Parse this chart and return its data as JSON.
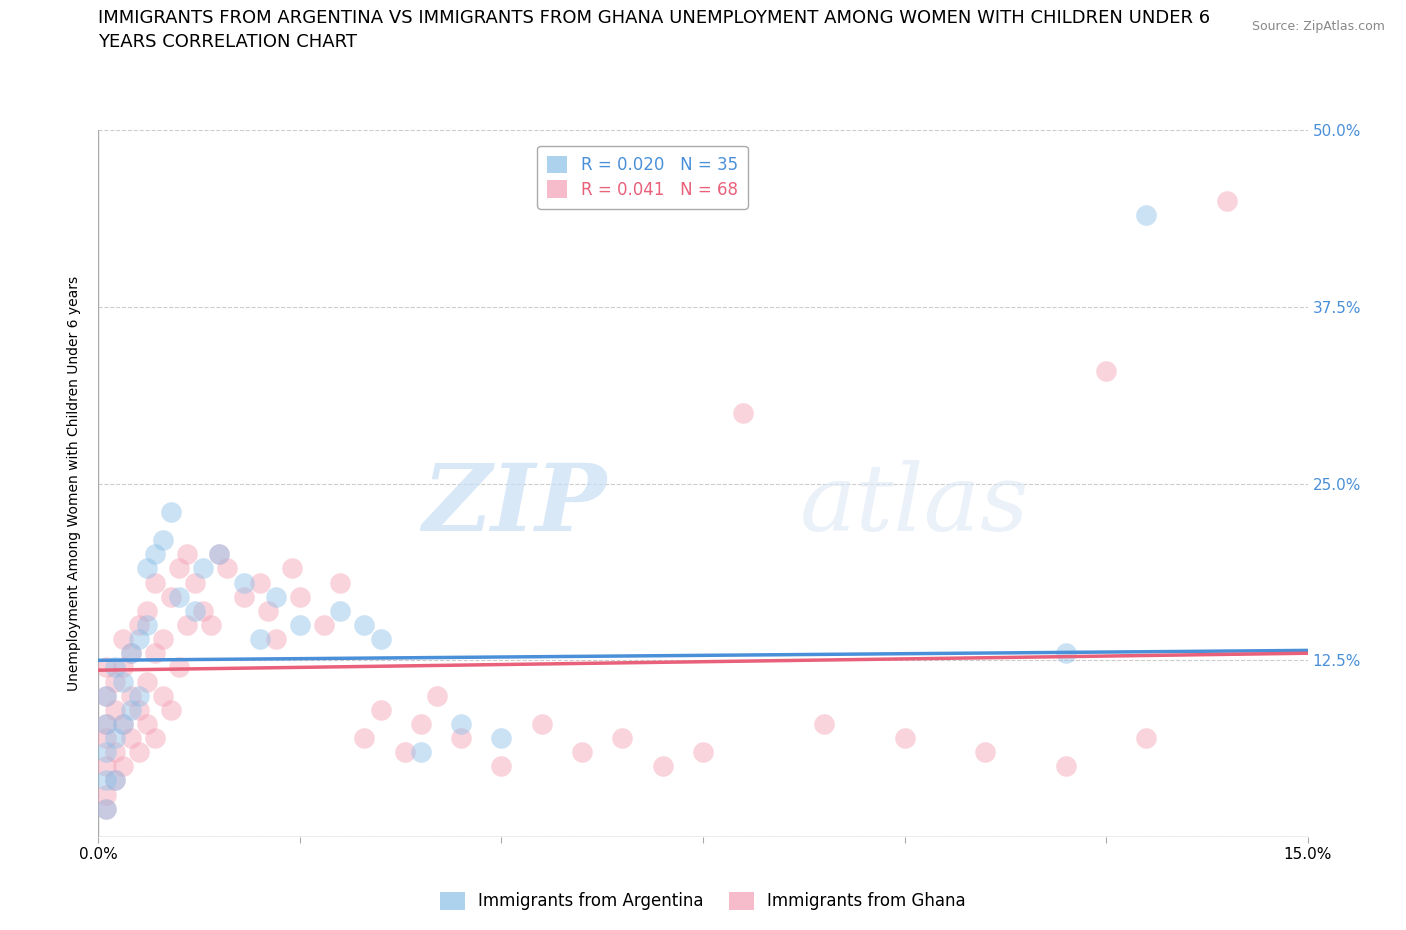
{
  "title_line1": "IMMIGRANTS FROM ARGENTINA VS IMMIGRANTS FROM GHANA UNEMPLOYMENT AMONG WOMEN WITH CHILDREN UNDER 6",
  "title_line2": "YEARS CORRELATION CHART",
  "source": "Source: ZipAtlas.com",
  "ylabel": "Unemployment Among Women with Children Under 6 years",
  "xlim": [
    0,
    0.15
  ],
  "ylim": [
    0,
    0.5
  ],
  "xticks": [
    0.0,
    0.025,
    0.05,
    0.075,
    0.1,
    0.125,
    0.15
  ],
  "xtick_labels": [
    "0.0%",
    "",
    "",
    "",
    "",
    "",
    "15.0%"
  ],
  "ytick_labels_right": [
    "50.0%",
    "37.5%",
    "25.0%",
    "12.5%",
    ""
  ],
  "yticks_right": [
    0.5,
    0.375,
    0.25,
    0.125,
    0.0
  ],
  "color_argentina": "#8bbfe8",
  "color_ghana": "#f4a0b5",
  "trendline_argentina_color": "#4a90d9",
  "trendline_ghana_color": "#e8607a",
  "R_argentina": 0.02,
  "N_argentina": 35,
  "R_ghana": 0.041,
  "N_ghana": 68,
  "argentina_x": [
    0.001,
    0.001,
    0.001,
    0.001,
    0.001,
    0.002,
    0.002,
    0.002,
    0.003,
    0.003,
    0.004,
    0.004,
    0.005,
    0.005,
    0.006,
    0.006,
    0.007,
    0.008,
    0.009,
    0.01,
    0.012,
    0.013,
    0.015,
    0.018,
    0.02,
    0.022,
    0.025,
    0.03,
    0.033,
    0.035,
    0.04,
    0.045,
    0.05,
    0.12,
    0.13
  ],
  "argentina_y": [
    0.02,
    0.04,
    0.06,
    0.08,
    0.1,
    0.04,
    0.07,
    0.12,
    0.08,
    0.11,
    0.09,
    0.13,
    0.14,
    0.1,
    0.15,
    0.19,
    0.2,
    0.21,
    0.23,
    0.17,
    0.16,
    0.19,
    0.2,
    0.18,
    0.14,
    0.17,
    0.15,
    0.16,
    0.15,
    0.14,
    0.06,
    0.08,
    0.07,
    0.13,
    0.44
  ],
  "ghana_x": [
    0.001,
    0.001,
    0.001,
    0.001,
    0.001,
    0.001,
    0.001,
    0.002,
    0.002,
    0.002,
    0.002,
    0.003,
    0.003,
    0.003,
    0.003,
    0.004,
    0.004,
    0.004,
    0.005,
    0.005,
    0.005,
    0.006,
    0.006,
    0.006,
    0.007,
    0.007,
    0.007,
    0.008,
    0.008,
    0.009,
    0.009,
    0.01,
    0.01,
    0.011,
    0.011,
    0.012,
    0.013,
    0.014,
    0.015,
    0.016,
    0.018,
    0.02,
    0.021,
    0.022,
    0.024,
    0.025,
    0.028,
    0.03,
    0.033,
    0.035,
    0.038,
    0.04,
    0.042,
    0.045,
    0.05,
    0.055,
    0.06,
    0.065,
    0.07,
    0.075,
    0.08,
    0.09,
    0.1,
    0.11,
    0.12,
    0.125,
    0.13,
    0.14
  ],
  "ghana_y": [
    0.02,
    0.03,
    0.05,
    0.07,
    0.08,
    0.1,
    0.12,
    0.04,
    0.06,
    0.09,
    0.11,
    0.05,
    0.08,
    0.12,
    0.14,
    0.07,
    0.1,
    0.13,
    0.06,
    0.09,
    0.15,
    0.08,
    0.11,
    0.16,
    0.07,
    0.13,
    0.18,
    0.1,
    0.14,
    0.09,
    0.17,
    0.12,
    0.19,
    0.15,
    0.2,
    0.18,
    0.16,
    0.15,
    0.2,
    0.19,
    0.17,
    0.18,
    0.16,
    0.14,
    0.19,
    0.17,
    0.15,
    0.18,
    0.07,
    0.09,
    0.06,
    0.08,
    0.1,
    0.07,
    0.05,
    0.08,
    0.06,
    0.07,
    0.05,
    0.06,
    0.3,
    0.08,
    0.07,
    0.06,
    0.05,
    0.33,
    0.07,
    0.45
  ],
  "watermark_zip": "ZIP",
  "watermark_atlas": "atlas",
  "background_color": "#ffffff",
  "grid_color": "#cccccc",
  "title_fontsize": 13,
  "axis_label_fontsize": 10,
  "tick_fontsize": 11,
  "legend_fontsize": 12,
  "marker_size": 220,
  "marker_alpha": 0.45,
  "trendline_lw": 2.5
}
